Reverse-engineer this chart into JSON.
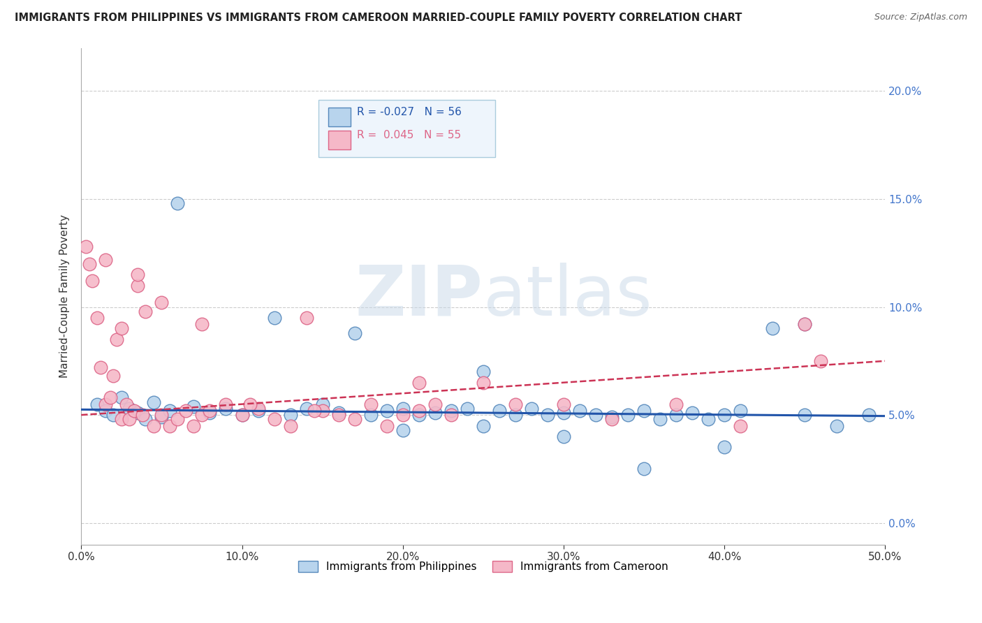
{
  "title": "IMMIGRANTS FROM PHILIPPINES VS IMMIGRANTS FROM CAMEROON MARRIED-COUPLE FAMILY POVERTY CORRELATION CHART",
  "source": "Source: ZipAtlas.com",
  "ylabel": "Married-Couple Family Poverty",
  "xlim": [
    0,
    50
  ],
  "ylim": [
    -1,
    22
  ],
  "ylabel_vals": [
    0.0,
    5.0,
    10.0,
    15.0,
    20.0
  ],
  "xlabel_vals": [
    0.0,
    10.0,
    20.0,
    30.0,
    40.0,
    50.0
  ],
  "philippines_R": "-0.027",
  "philippines_N": "56",
  "cameroon_R": "0.045",
  "cameroon_N": "55",
  "philippines_color": "#b8d4ed",
  "philippines_edge": "#5588bb",
  "cameroon_color": "#f5b8c8",
  "cameroon_edge": "#dd6688",
  "philippines_line_color": "#2255aa",
  "cameroon_line_color": "#cc3355",
  "watermark_color": "#d0dff0",
  "right_tick_color": "#4477cc",
  "philippines_x": [
    1.0,
    1.5,
    2.0,
    2.5,
    3.0,
    3.5,
    4.0,
    4.5,
    5.0,
    5.5,
    6.0,
    7.0,
    8.0,
    9.0,
    10.0,
    11.0,
    12.0,
    13.0,
    14.0,
    15.0,
    16.0,
    17.0,
    18.0,
    19.0,
    20.0,
    21.0,
    22.0,
    23.0,
    24.0,
    25.0,
    26.0,
    27.0,
    28.0,
    29.0,
    30.0,
    31.0,
    32.0,
    33.0,
    34.0,
    35.0,
    36.0,
    37.0,
    38.0,
    39.0,
    40.0,
    41.0,
    43.0,
    45.0,
    47.0,
    49.0,
    20.0,
    30.0,
    35.0,
    40.0,
    45.0,
    25.0
  ],
  "philippines_y": [
    5.5,
    5.2,
    5.0,
    5.8,
    5.3,
    5.1,
    4.8,
    5.6,
    4.9,
    5.2,
    14.8,
    5.4,
    5.1,
    5.3,
    5.0,
    5.2,
    9.5,
    5.0,
    5.3,
    5.5,
    5.1,
    8.8,
    5.0,
    5.2,
    5.3,
    5.0,
    5.1,
    5.2,
    5.3,
    7.0,
    5.2,
    5.0,
    5.3,
    5.0,
    5.1,
    5.2,
    5.0,
    4.9,
    5.0,
    5.2,
    4.8,
    5.0,
    5.1,
    4.8,
    5.0,
    5.2,
    9.0,
    5.0,
    4.5,
    5.0,
    4.3,
    4.0,
    2.5,
    3.5,
    9.2,
    4.5
  ],
  "cameroon_x": [
    0.3,
    0.5,
    0.7,
    1.0,
    1.2,
    1.5,
    1.8,
    2.0,
    2.2,
    2.5,
    2.8,
    3.0,
    3.3,
    3.5,
    3.8,
    4.0,
    4.5,
    5.0,
    5.5,
    6.0,
    6.5,
    7.0,
    7.5,
    8.0,
    9.0,
    10.0,
    11.0,
    12.0,
    13.0,
    14.0,
    15.0,
    16.0,
    17.0,
    18.0,
    19.0,
    20.0,
    21.0,
    22.0,
    23.0,
    25.0,
    27.0,
    30.0,
    33.0,
    37.0,
    41.0,
    45.0,
    1.5,
    2.5,
    3.5,
    5.0,
    7.5,
    10.5,
    14.5,
    21.0,
    46.0
  ],
  "cameroon_y": [
    12.8,
    12.0,
    11.2,
    9.5,
    7.2,
    5.5,
    5.8,
    6.8,
    8.5,
    4.8,
    5.5,
    4.8,
    5.2,
    11.0,
    5.0,
    9.8,
    4.5,
    5.0,
    4.5,
    4.8,
    5.2,
    4.5,
    5.0,
    5.2,
    5.5,
    5.0,
    5.3,
    4.8,
    4.5,
    9.5,
    5.2,
    5.0,
    4.8,
    5.5,
    4.5,
    5.0,
    5.2,
    5.5,
    5.0,
    6.5,
    5.5,
    5.5,
    4.8,
    5.5,
    4.5,
    9.2,
    12.2,
    9.0,
    11.5,
    10.2,
    9.2,
    5.5,
    5.2,
    6.5,
    7.5
  ]
}
